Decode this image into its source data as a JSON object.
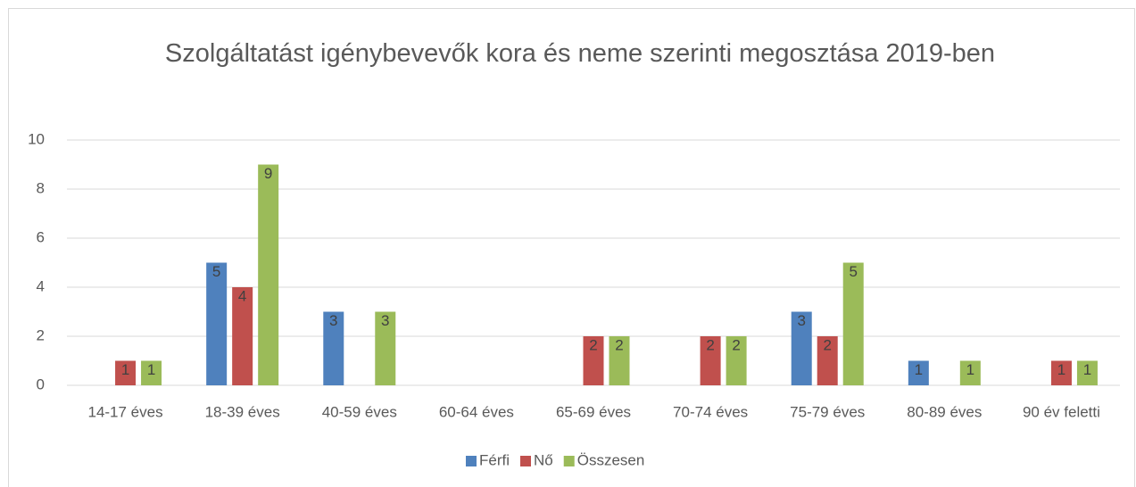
{
  "chart_data": {
    "type": "bar",
    "title": "Szolgáltatást igénybevevők kora és neme szerinti megosztása 2019-ben",
    "categories": [
      "14-17 éves",
      "18-39 éves",
      "40-59 éves",
      "60-64 éves",
      "65-69 éves",
      "70-74 éves",
      "75-79 éves",
      "80-89 éves",
      "90 év feletti"
    ],
    "series": [
      {
        "name": "Férfi",
        "color": "#4f81bd",
        "values": [
          null,
          5,
          3,
          null,
          null,
          null,
          3,
          1,
          null
        ]
      },
      {
        "name": "Nő",
        "color": "#c0504d",
        "values": [
          1,
          4,
          null,
          null,
          2,
          2,
          2,
          null,
          1
        ]
      },
      {
        "name": "Összesen",
        "color": "#9bbb59",
        "values": [
          1,
          9,
          3,
          null,
          2,
          2,
          5,
          1,
          1
        ]
      }
    ],
    "ylim": [
      0,
      10
    ],
    "yticks": [
      0,
      2,
      4,
      6,
      8,
      10
    ],
    "grid": true,
    "legend": "bottom"
  }
}
